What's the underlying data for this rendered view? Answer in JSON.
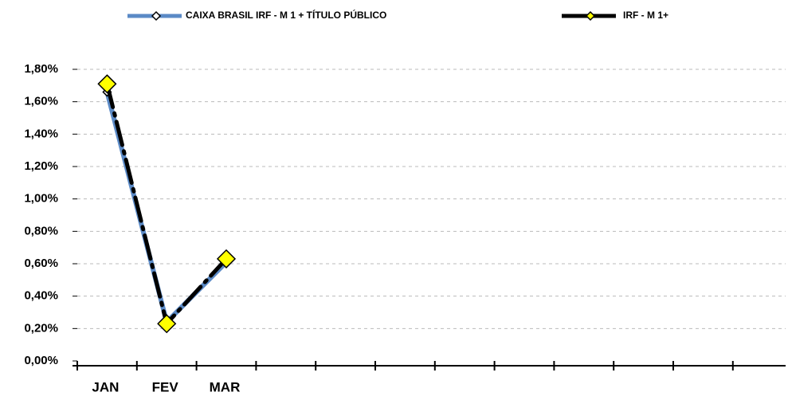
{
  "chart_data": {
    "type": "line",
    "categories": [
      "JAN",
      "FEV",
      "MAR",
      null,
      null,
      null,
      null,
      null,
      null,
      null,
      null,
      null
    ],
    "series": [
      {
        "name": "CAIXA BRASIL IRF - M 1 + TÍTULO PÚBLICO",
        "color": "#5b8ac6",
        "values": [
          1.66,
          0.24,
          0.61,
          null,
          null,
          null,
          null,
          null,
          null,
          null,
          null,
          null
        ]
      },
      {
        "name": "IRF - M 1+",
        "color": "#000000",
        "marker_color": "#ffff00",
        "values": [
          1.71,
          0.23,
          0.63,
          null,
          null,
          null,
          null,
          null,
          null,
          null,
          null,
          null
        ]
      }
    ],
    "ylim": [
      0,
      1.8
    ],
    "yticks": [
      {
        "value": 0,
        "label": "0,00%"
      },
      {
        "value": 0.2,
        "label": "0,20%"
      },
      {
        "value": 0.4,
        "label": "0,40%"
      },
      {
        "value": 0.6,
        "label": "0,60%"
      },
      {
        "value": 0.8,
        "label": "0,80%"
      },
      {
        "value": 1.0,
        "label": "1,00%"
      },
      {
        "value": 1.2,
        "label": "1,20%"
      },
      {
        "value": 1.4,
        "label": "1,40%"
      },
      {
        "value": 1.6,
        "label": "1,60%"
      },
      {
        "value": 1.8,
        "label": "1,80%"
      }
    ],
    "grid": true,
    "legend": "top"
  }
}
